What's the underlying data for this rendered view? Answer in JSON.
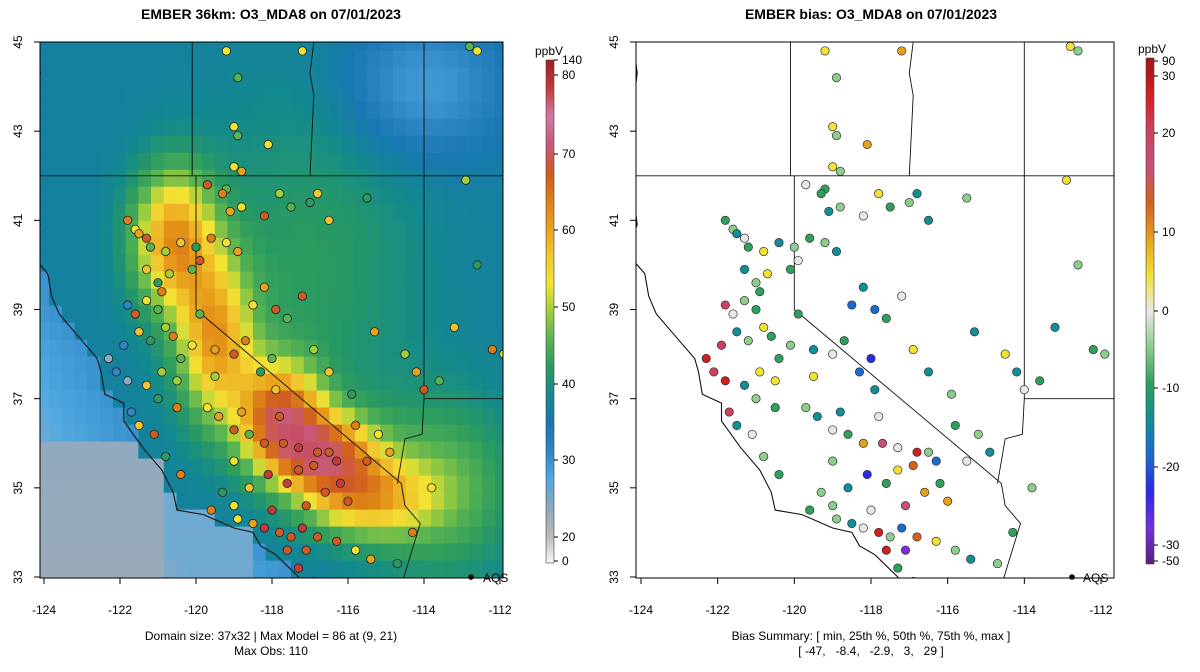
{
  "panels": [
    {
      "title": "EMBER 36km: O3_MDA8 on 07/01/2023",
      "footer_line1": "Domain size: 37x32 | Max Model = 86 at (9, 21)",
      "footer_line2": "Max Obs: 110",
      "marker_label": "AQS",
      "x_ticks": [
        "-124",
        "-122",
        "-120",
        "-118",
        "-116",
        "-114",
        "-112"
      ],
      "y_ticks": [
        "45",
        "43",
        "41",
        "39",
        "37",
        "35",
        "33"
      ],
      "colorbar": {
        "unit": "ppbV",
        "tick_labels": [
          "140",
          "80",
          "70",
          "60",
          "50",
          "40",
          "30",
          "20",
          "0"
        ],
        "tick_values": [
          140,
          80,
          70,
          60,
          50,
          40,
          30,
          20,
          0
        ],
        "gradient_colors": [
          "#f6f6f6",
          "#b8b8b8",
          "#8ea7bd",
          "#52a9e0",
          "#2e86c5",
          "#1877b2",
          "#13898f",
          "#2b9b5f",
          "#58b351",
          "#a2cd3d",
          "#f2e332",
          "#f1c52d",
          "#e9a21c",
          "#dd7e16",
          "#cf5a22",
          "#c85a7a",
          "#d07aa0",
          "#c33a3a",
          "#a31e22"
        ]
      }
    },
    {
      "title": "EMBER bias: O3_MDA8 on 07/01/2023",
      "footer_line1": "Bias Summary: [ min, 25th %, 50th %, 75th %, max ]",
      "footer_line2": "[ -47,   -8.4,   -2.9,   3,   29 ]",
      "marker_label": "AQS",
      "x_ticks": [
        "-124",
        "-122",
        "-120",
        "-118",
        "-116",
        "-114",
        "-112"
      ],
      "y_ticks": [
        "45",
        "43",
        "41",
        "39",
        "37",
        "35",
        "33"
      ],
      "colorbar": {
        "unit": "ppbV",
        "tick_labels": [
          "90",
          "30",
          "20",
          "10",
          "0",
          "-10",
          "-20",
          "-30",
          "-50"
        ],
        "tick_values": [
          90,
          30,
          20,
          10,
          0,
          -10,
          -20,
          -30,
          -50
        ],
        "gradient_colors": [
          "#5a1e7a",
          "#7a2ee0",
          "#2a2ae6",
          "#1a6ad0",
          "#0f8f98",
          "#2ea05c",
          "#8ccf8c",
          "#e8e8e8",
          "#f2e332",
          "#e5a21c",
          "#d3601e",
          "#c8507a",
          "#d04060",
          "#d41e1e",
          "#a01414"
        ]
      },
      "bias_summary": {
        "min": -47,
        "p25": -8.4,
        "p50": -2.9,
        "p75": 3,
        "max": 29
      }
    }
  ],
  "map": {
    "lon_range": [
      -124,
      -112
    ],
    "lat_range": [
      33,
      45
    ],
    "ocean_color": "#4fa3dc",
    "aqs_site": {
      "lon": -112.7,
      "lat": 33.0
    }
  }
}
